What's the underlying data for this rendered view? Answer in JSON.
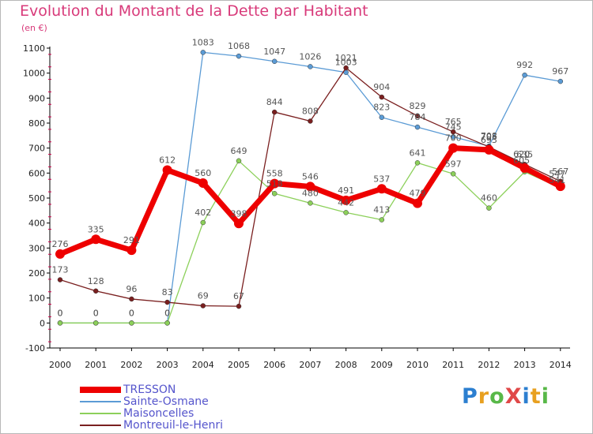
{
  "header": {
    "title": "Evolution du Montant de la Dette par Habitant",
    "subtitle": "(en €)"
  },
  "logo": {
    "text": "ProXiti",
    "letters": [
      "P",
      "r",
      "o",
      "X",
      "i",
      "t",
      "i"
    ]
  },
  "colors": {
    "title": "#d83a7a",
    "legend_text": "#5555cc",
    "axis": "#000000",
    "grid_tick": "#d0004a",
    "label_text": "#555555"
  },
  "chart_data": {
    "type": "line",
    "title": "Evolution du Montant de la Dette par Habitant",
    "ylabel": "(en €)",
    "xlabel": "",
    "x": [
      "2000",
      "2001",
      "2002",
      "2003",
      "2004",
      "2005",
      "2006",
      "2007",
      "2008",
      "2009",
      "2010",
      "2011",
      "2012",
      "2013",
      "2014"
    ],
    "ylim": [
      -100,
      1100
    ],
    "yticks": [
      "-100",
      "0",
      "100",
      "200",
      "300",
      "400",
      "500",
      "600",
      "700",
      "800",
      "900",
      "1000",
      "1100"
    ],
    "grid": false,
    "legend_position": "bottom-left",
    "series": [
      {
        "name": "TRESSON",
        "color": "#ee0000",
        "emphasis": true,
        "values": [
          276,
          335,
          291,
          612,
          560,
          398,
          558,
          546,
          491,
          537,
          479,
          700,
          693,
          620,
          547
        ],
        "labels": [
          "276",
          "335",
          "291",
          "612",
          "560",
          "398",
          "558",
          "546",
          "491",
          "537",
          "479",
          "700",
          "693",
          "",
          ""
        ]
      },
      {
        "name": "Sainte-Osmane",
        "color": "#5b9bd5",
        "emphasis": false,
        "values": [
          0,
          0,
          0,
          0,
          1083,
          1068,
          1047,
          1026,
          1003,
          823,
          784,
          745,
          708,
          992,
          967
        ],
        "labels": [
          "0",
          "0",
          "0",
          "0",
          "1083",
          "1068",
          "1047",
          "1026",
          "1003",
          "823",
          "784",
          "745",
          "708",
          "992",
          "967"
        ]
      },
      {
        "name": "Maisoncelles",
        "color": "#8cd05a",
        "emphasis": false,
        "values": [
          0,
          0,
          0,
          0,
          402,
          649,
          518,
          480,
          442,
          413,
          641,
          597,
          460,
          605,
          541
        ],
        "labels": [
          "0",
          "0",
          "0",
          "0",
          "402",
          "649",
          "518",
          "480",
          "442",
          "413",
          "641",
          "597",
          "460",
          "",
          ""
        ]
      },
      {
        "name": "Montreuil-le-Henri",
        "color": "#7a1f1f",
        "emphasis": false,
        "values": [
          173,
          128,
          96,
          83,
          69,
          67,
          844,
          808,
          1021,
          904,
          829,
          765,
          705,
          635,
          567
        ],
        "labels": [
          "173",
          "128",
          "96",
          "83",
          "69",
          "67",
          "844",
          "808",
          "1021",
          "904",
          "829",
          "765",
          "705",
          "635",
          "567"
        ]
      }
    ],
    "overlap_labels": [
      {
        "x": "2013",
        "text": "620",
        "dy": -2
      },
      {
        "x": "2013",
        "text": "605",
        "dy": 6
      },
      {
        "x": "2014",
        "text": "547",
        "dy": 0
      },
      {
        "x": "2014",
        "text": "541",
        "dy": 8
      }
    ]
  }
}
